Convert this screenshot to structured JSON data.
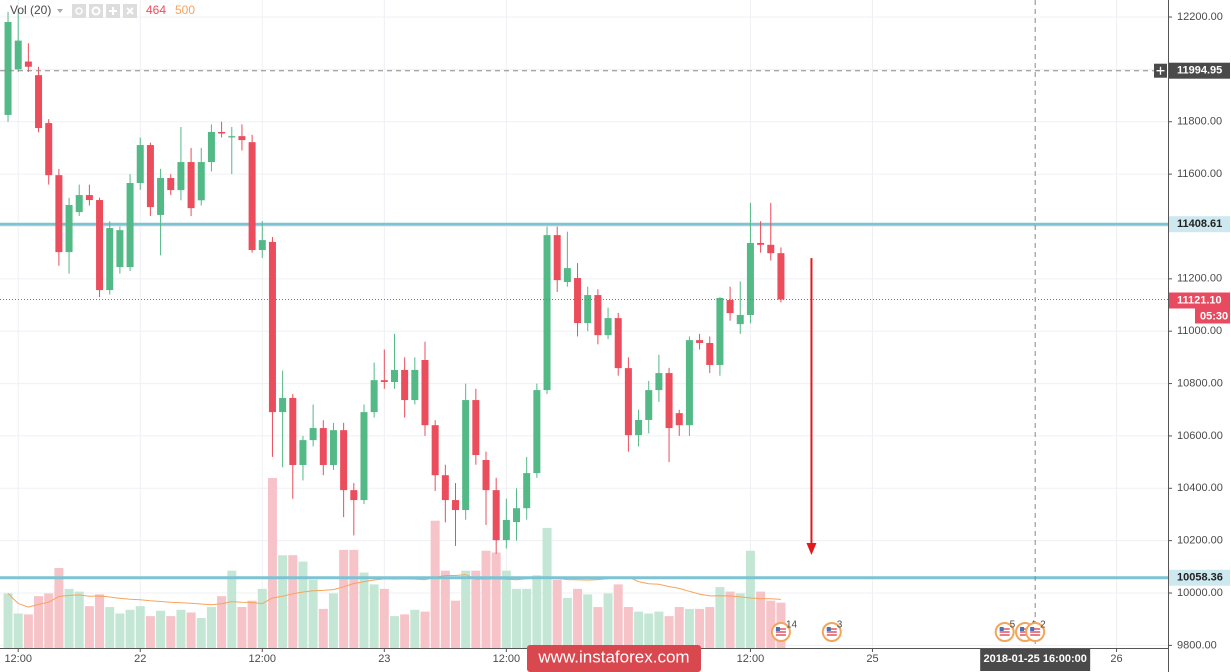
{
  "chart_data": {
    "type": "candlestick",
    "indicator": "Vol (20)",
    "volume_ma_value": 500,
    "up_color": "#53b987",
    "down_color": "#eb4d5c",
    "up_volume_color": "#c4e7d5",
    "down_volume_color": "#f6c3c8",
    "volume_ma_color": "#f7a35c",
    "open": [
      11826,
      12000,
      12030,
      11978,
      11795,
      11596,
      11302,
      11455,
      11520,
      11501,
      11157,
      11245,
      11245,
      11566,
      11711,
      11444,
      11585,
      11539,
      11646,
      11500,
      11646,
      11761,
      11740,
      11745,
      11722,
      11310,
      11341,
      10691,
      10745,
      10489,
      10584,
      10630,
      10489,
      10622,
      10393,
      10355,
      10691,
      10813,
      10806,
      10852,
      10737,
      10890,
      10641,
      10450,
      10355,
      10317,
      10737,
      10508,
      10393,
      10202,
      10271,
      10324,
      10458,
      10775,
      11367,
      11188,
      11203,
      11031,
      11138,
      10985,
      11050,
      10859,
      10603,
      10661,
      10775,
      10840,
      10687,
      10641,
      10966,
      10955,
      10871,
      11119,
      11027,
      11062,
      11337,
      11330,
      11298
    ],
    "high": [
      12220,
      12230,
      12100,
      12010,
      11810,
      11620,
      11510,
      11560,
      11560,
      11510,
      11420,
      11400,
      11600,
      11740,
      11720,
      11620,
      11600,
      11780,
      11700,
      11700,
      11790,
      11800,
      11780,
      11790,
      11750,
      11420,
      11360,
      10850,
      10760,
      10600,
      10720,
      10660,
      10650,
      10650,
      10420,
      10720,
      10880,
      10930,
      10990,
      10900,
      10900,
      10960,
      10660,
      10490,
      10420,
      10800,
      10780,
      10540,
      10440,
      10360,
      10400,
      10520,
      10800,
      11400,
      11400,
      11380,
      11260,
      11170,
      11160,
      11090,
      11070,
      10900,
      10700,
      10810,
      10910,
      10860,
      10700,
      10980,
      10990,
      10980,
      11130,
      11170,
      11190,
      11490,
      11420,
      11490,
      11320
    ],
    "low": [
      11800,
      11990,
      11990,
      11760,
      11560,
      11250,
      11220,
      11440,
      11480,
      11130,
      11140,
      11220,
      11230,
      11540,
      11440,
      11290,
      11520,
      11500,
      11440,
      11480,
      11610,
      11740,
      11600,
      11690,
      11300,
      11280,
      10520,
      10480,
      10360,
      10430,
      10560,
      10450,
      10470,
      10290,
      10220,
      10340,
      10670,
      10780,
      10780,
      10670,
      10720,
      10600,
      10390,
      10270,
      10180,
      10280,
      10490,
      10260,
      10150,
      10170,
      10200,
      10280,
      10440,
      10760,
      11150,
      11170,
      10980,
      11000,
      10950,
      10970,
      10830,
      10540,
      10560,
      10610,
      10730,
      10500,
      10600,
      10600,
      10930,
      10840,
      10830,
      11040,
      10990,
      11030,
      11300,
      11270,
      11110
    ],
    "close": [
      12181,
      12110,
      12010,
      11776,
      11596,
      11302,
      11482,
      11520,
      11501,
      11157,
      11394,
      11386,
      11566,
      11711,
      11474,
      11585,
      11539,
      11646,
      11470,
      11646,
      11761,
      11755,
      11745,
      11730,
      11310,
      11348,
      10691,
      10745,
      10489,
      10584,
      10630,
      10489,
      10622,
      10393,
      10355,
      10691,
      10813,
      10806,
      10852,
      10737,
      10852,
      10641,
      10450,
      10355,
      10317,
      10737,
      10527,
      10393,
      10202,
      10279,
      10324,
      10458,
      10775,
      11367,
      11195,
      11241,
      11031,
      11138,
      10985,
      11050,
      10859,
      10603,
      10661,
      10775,
      10840,
      10630,
      10641,
      10966,
      10955,
      10871,
      11127,
      11069,
      11062,
      11337,
      11330,
      11298,
      11121.1
    ],
    "volume": [
      558,
      353,
      344,
      530,
      558,
      818,
      605,
      577,
      428,
      549,
      419,
      353,
      391,
      428,
      326,
      381,
      326,
      391,
      363,
      307,
      419,
      530,
      791,
      419,
      484,
      605,
      1739,
      949,
      949,
      884,
      698,
      400,
      558,
      1004,
      1004,
      772,
      651,
      605,
      326,
      344,
      391,
      372,
      1302,
      791,
      484,
      791,
      791,
      995,
      977,
      791,
      605,
      605,
      744,
      1228,
      698,
      512,
      605,
      549,
      419,
      558,
      651,
      419,
      372,
      353,
      372,
      326,
      419,
      400,
      400,
      419,
      623,
      577,
      558,
      995,
      577,
      484,
      464
    ],
    "xlim": [
      -0.79,
      114.06
    ],
    "ylim": [
      9790,
      12265
    ],
    "xticks": [
      {
        "value": 1,
        "label": "12:00"
      },
      {
        "value": 13,
        "label": "22"
      },
      {
        "value": 25,
        "label": "12:00"
      },
      {
        "value": 37,
        "label": "23"
      },
      {
        "value": 49,
        "label": "12:00"
      },
      {
        "value": 73,
        "label": "12:00"
      },
      {
        "value": 85,
        "label": "25"
      },
      {
        "value": 109,
        "label": "26"
      }
    ],
    "yticks": [
      {
        "value": 9800,
        "label": "9800.00"
      },
      {
        "value": 10000,
        "label": "10000.00"
      },
      {
        "value": 10200,
        "label": "10200.00"
      },
      {
        "value": 10400,
        "label": "10400.00"
      },
      {
        "value": 10600,
        "label": "10600.00"
      },
      {
        "value": 10800,
        "label": "10800.00"
      },
      {
        "value": 11000,
        "label": "11000.00"
      },
      {
        "value": 11200,
        "label": "11200.00"
      },
      {
        "value": 11400,
        "label": "11400.00"
      },
      {
        "value": 11600,
        "label": "11600.00"
      },
      {
        "value": 11800,
        "label": "11800.00"
      },
      {
        "value": 12000,
        "label": "12000.00"
      },
      {
        "value": 12200,
        "label": "12200.00"
      }
    ],
    "grid": true,
    "levels": [
      {
        "value": 11408.61,
        "color": "#7cc4d4"
      },
      {
        "value": 10058.36,
        "color": "#7cc4d4"
      }
    ],
    "current_price": {
      "value": 11121.1,
      "label": "11121.10",
      "color": "#e84a5f"
    },
    "countdown": "05:30",
    "crosshair": {
      "price": 11994.95,
      "x": 101,
      "x_label": "2018-01-25 16:00:00"
    },
    "arrow": {
      "x": 79,
      "from": 11279,
      "to": 10145,
      "color": "#e31a1c"
    },
    "events": [
      {
        "x": 76,
        "count": 14
      },
      {
        "x": 81,
        "count": 3
      },
      {
        "x": 98,
        "count": 5
      },
      {
        "x": 100,
        "count": 4
      },
      {
        "x": 101,
        "count": 2
      }
    ],
    "watermark": "www.instaforex.com"
  }
}
